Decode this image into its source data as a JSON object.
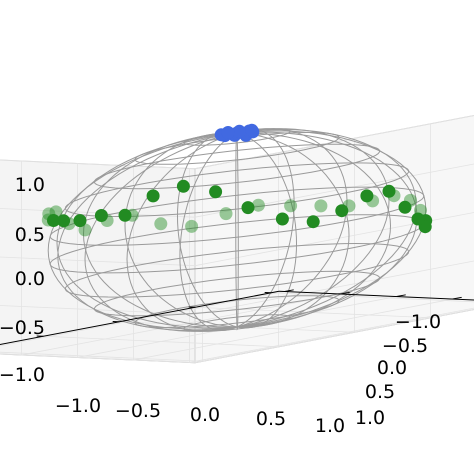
{
  "chart_data": {
    "type": "scatter",
    "projection": "3d",
    "title": "",
    "xlabel": "",
    "ylabel": "",
    "zlabel": "",
    "xlim": [
      -1.0,
      1.0
    ],
    "ylim": [
      -1.0,
      1.0
    ],
    "zlim": [
      -1.0,
      1.0
    ],
    "x_ticks": [
      "−1.0",
      "−0.5",
      "0.0",
      "0.5",
      "1.0"
    ],
    "y_ticks": [
      "−1.0",
      "−0.5",
      "0.0",
      "0.5",
      "1.0"
    ],
    "z_ticks": [
      "−1.0",
      "−0.5",
      "0.0",
      "0.5",
      "1.0"
    ],
    "grid": true,
    "legend": "none",
    "wireframe": "unit sphere",
    "series": [
      {
        "color": "#228B22",
        "description_points": "ring of states near the equator with a small oscillation",
        "points": [
          [
            1.0,
            0.0,
            0.1
          ],
          [
            0.98,
            0.17,
            0.25
          ],
          [
            0.94,
            0.34,
            0.3
          ],
          [
            0.87,
            0.5,
            0.2
          ],
          [
            0.77,
            0.64,
            0.0
          ],
          [
            0.64,
            0.77,
            -0.15
          ],
          [
            0.5,
            0.87,
            -0.2
          ],
          [
            0.34,
            0.94,
            -0.1
          ],
          [
            0.17,
            0.98,
            0.05
          ],
          [
            0.0,
            1.0,
            0.1
          ],
          [
            -0.17,
            0.98,
            -0.05
          ],
          [
            -0.34,
            0.94,
            -0.15
          ],
          [
            -0.5,
            0.87,
            -0.2
          ],
          [
            -0.64,
            0.77,
            -0.1
          ],
          [
            -0.77,
            0.64,
            0.05
          ],
          [
            -0.87,
            0.5,
            0.2
          ],
          [
            -0.94,
            0.34,
            0.3
          ],
          [
            -0.98,
            0.17,
            0.3
          ],
          [
            -1.0,
            0.0,
            0.3
          ],
          [
            -0.98,
            -0.17,
            0.35
          ],
          [
            -0.94,
            -0.34,
            0.4
          ],
          [
            -0.87,
            -0.5,
            0.45
          ],
          [
            -0.77,
            -0.64,
            0.4
          ],
          [
            -0.64,
            -0.77,
            0.3
          ],
          [
            -0.5,
            -0.87,
            0.35
          ],
          [
            -0.34,
            -0.94,
            0.45
          ],
          [
            -0.17,
            -0.98,
            0.4
          ],
          [
            0.0,
            -1.0,
            0.3
          ],
          [
            0.17,
            -0.98,
            0.35
          ],
          [
            0.34,
            -0.94,
            0.45
          ],
          [
            0.5,
            -0.87,
            0.4
          ],
          [
            0.64,
            -0.77,
            0.3
          ],
          [
            0.77,
            -0.64,
            0.25
          ],
          [
            0.87,
            -0.5,
            0.2
          ],
          [
            0.94,
            -0.34,
            0.15
          ],
          [
            0.98,
            -0.17,
            0.15
          ]
        ]
      },
      {
        "color": "#4169E1",
        "description_points": "cluster of states near the north pole",
        "points": [
          [
            0.0,
            0.0,
            1.0
          ],
          [
            0.08,
            0.0,
            0.997
          ],
          [
            -0.08,
            0.0,
            0.997
          ],
          [
            0.0,
            0.08,
            0.997
          ],
          [
            0.0,
            -0.08,
            0.997
          ],
          [
            0.06,
            0.06,
            0.996
          ],
          [
            -0.06,
            0.06,
            0.996
          ],
          [
            0.06,
            -0.06,
            0.996
          ],
          [
            -0.06,
            -0.06,
            0.996
          ],
          [
            0.12,
            0.03,
            0.99
          ],
          [
            -0.12,
            -0.03,
            0.99
          ],
          [
            0.03,
            0.12,
            0.99
          ]
        ]
      }
    ]
  }
}
